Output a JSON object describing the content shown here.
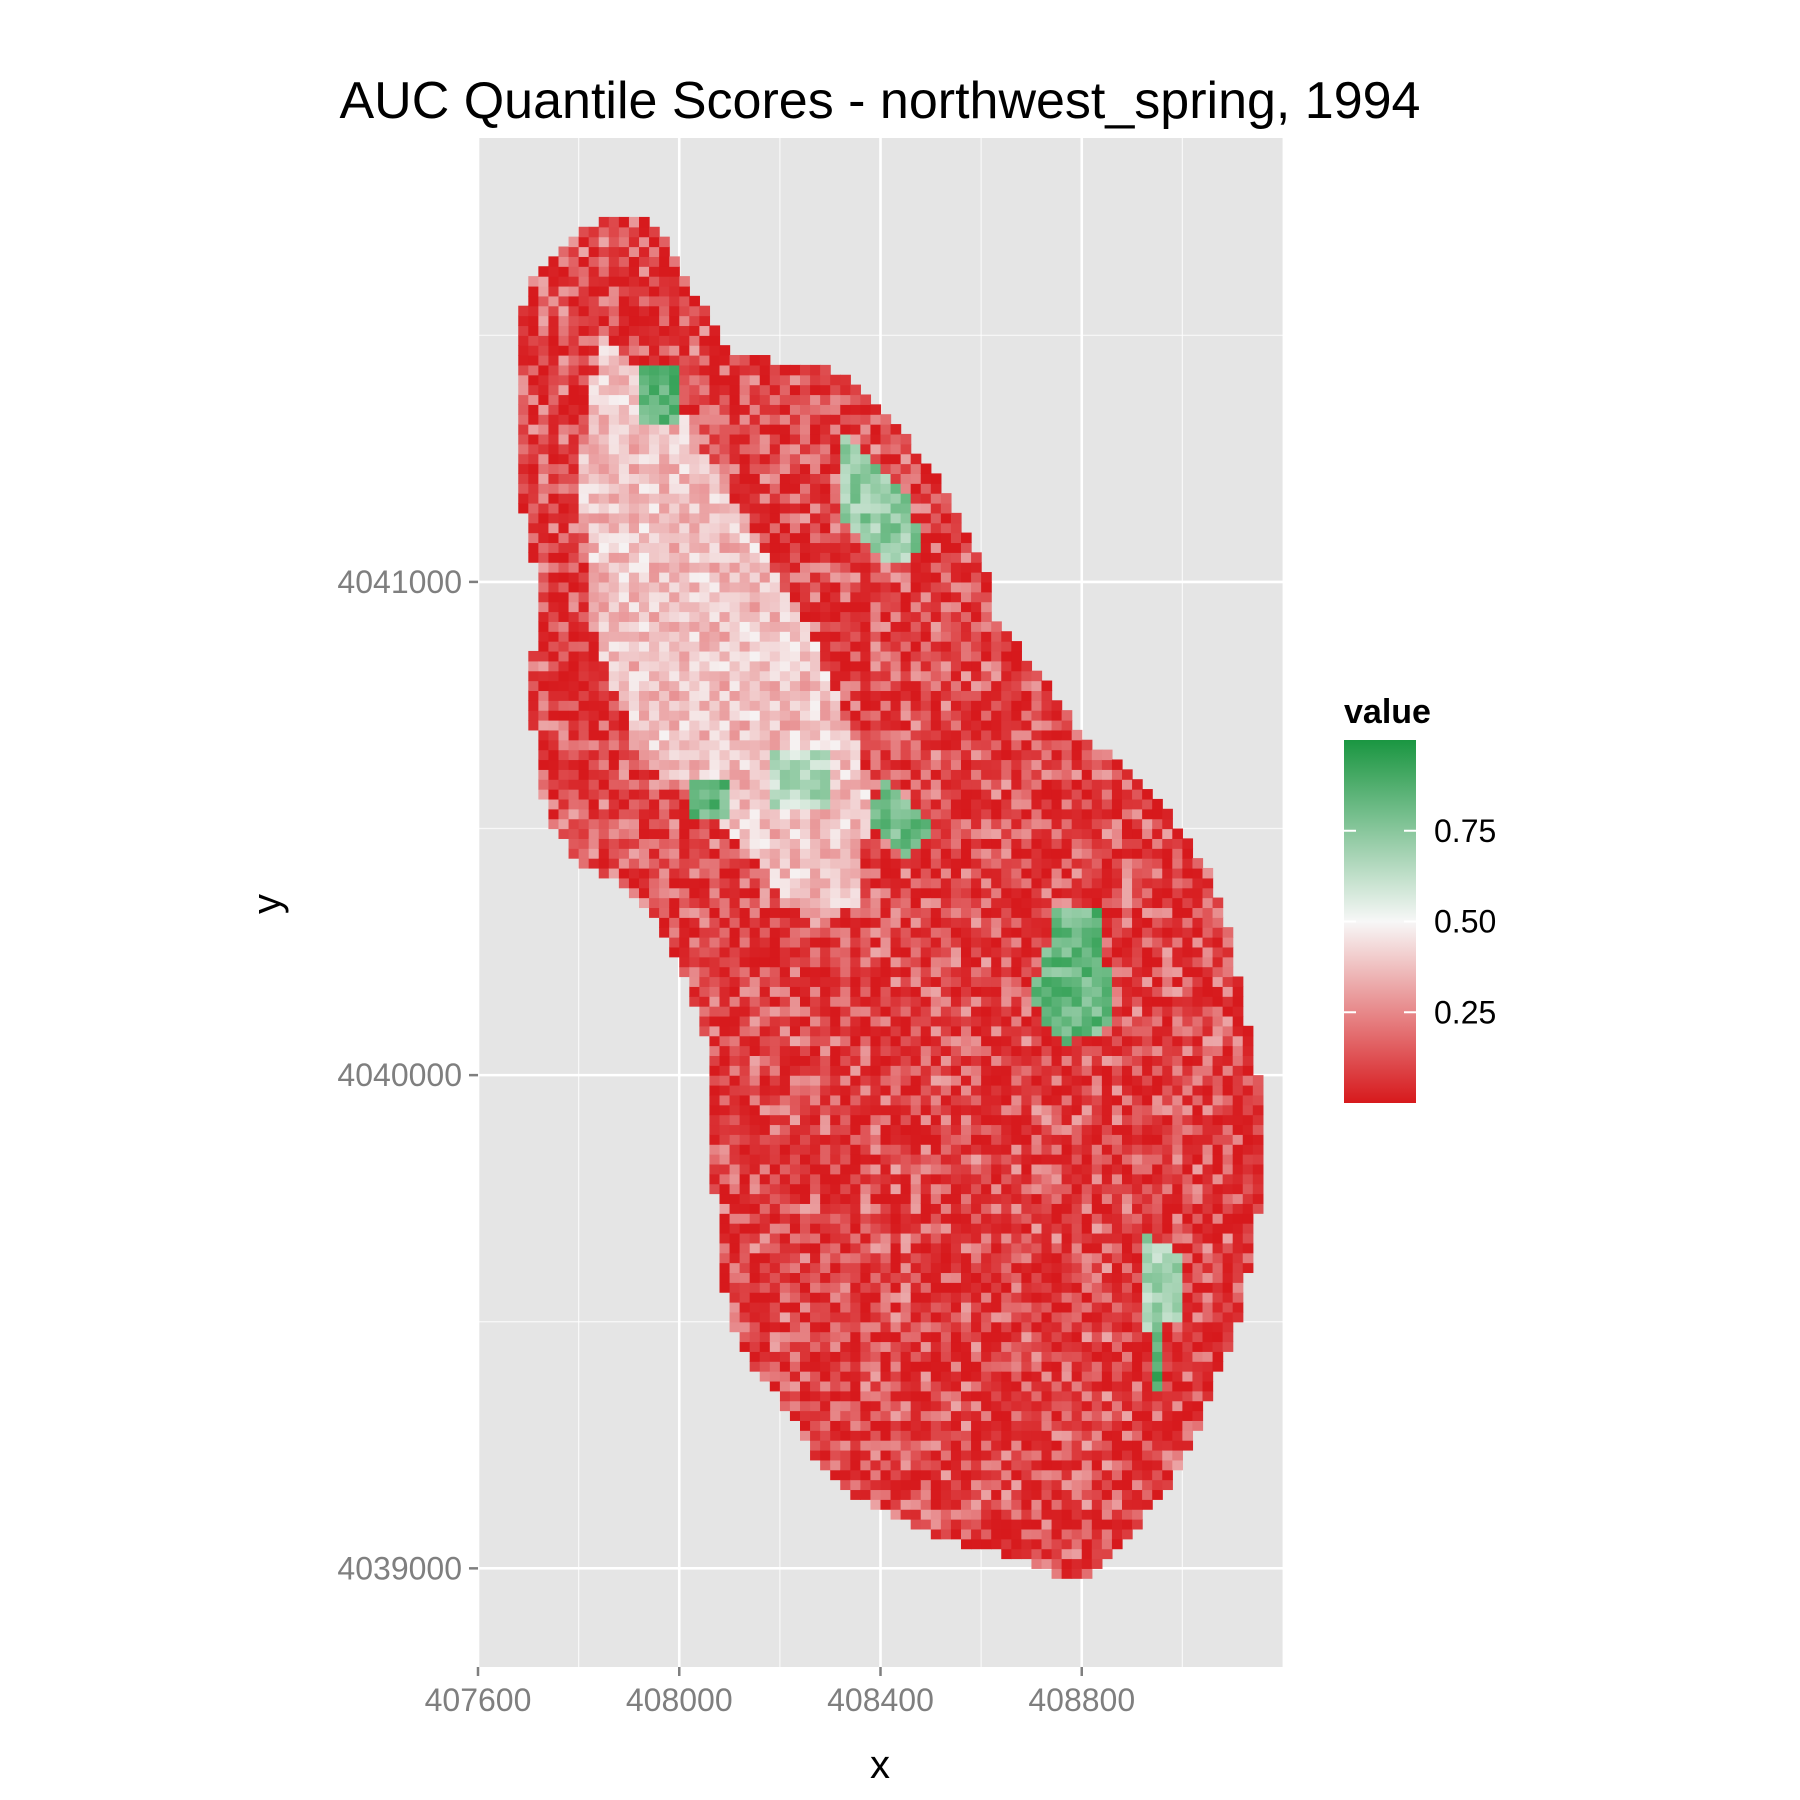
{
  "chart_data": {
    "type": "heatmap",
    "title": "AUC Quantile Scores - northwest_spring, 1994",
    "xlabel": "x",
    "ylabel": "y",
    "xlim": [
      407600,
      409200
    ],
    "ylim": [
      4038800,
      4041900
    ],
    "x_ticks": [
      407600,
      408000,
      408400,
      408800
    ],
    "x_tick_labels": [
      "407600",
      "408000",
      "408400",
      "408800"
    ],
    "y_ticks": [
      4039000,
      4040000,
      4041000
    ],
    "y_tick_labels": [
      "4039000",
      "4040000",
      "4041000"
    ],
    "grid": true,
    "cell_size": [
      20,
      20
    ],
    "legend": {
      "title": "value",
      "placement": "right",
      "breaks": [
        0.25,
        0.5,
        0.75
      ],
      "break_labels": [
        "0.25",
        "0.50",
        "0.75"
      ],
      "range": [
        0,
        1
      ]
    },
    "colors": {
      "low": "#d7191c",
      "mid": "#f7f7f7",
      "high": "#1a9641",
      "panel": "#e5e5e5",
      "grid": "#ffffff"
    },
    "extent": {
      "northwest_tip": [
        407700,
        4041600
      ],
      "north_peak": [
        407880,
        4041740
      ],
      "south_tip": [
        408800,
        4038980
      ]
    },
    "zones": [
      {
        "name": "central-pale-band",
        "value": 0.38,
        "points": [
          [
            407840,
            4041500
          ],
          [
            407980,
            4041380
          ],
          [
            408120,
            4041150
          ],
          [
            408260,
            4040900
          ],
          [
            408380,
            4040600
          ],
          [
            408360,
            4040350
          ],
          [
            408260,
            4040300
          ],
          [
            408120,
            4040480
          ],
          [
            407920,
            4040650
          ],
          [
            407830,
            4040900
          ],
          [
            407800,
            4041200
          ]
        ]
      },
      {
        "name": "green-patch-1",
        "value": 0.85,
        "points": [
          [
            407920,
            4041450
          ],
          [
            408010,
            4041450
          ],
          [
            408010,
            4041330
          ],
          [
            407920,
            4041330
          ]
        ]
      },
      {
        "name": "green-patch-2",
        "value": 0.72,
        "points": [
          [
            408330,
            4041300
          ],
          [
            408440,
            4041200
          ],
          [
            408490,
            4041060
          ],
          [
            408420,
            4041030
          ],
          [
            408310,
            4041140
          ]
        ]
      },
      {
        "name": "green-patch-3",
        "value": 0.82,
        "points": [
          [
            408020,
            4040610
          ],
          [
            408100,
            4040610
          ],
          [
            408100,
            4040530
          ],
          [
            408020,
            4040530
          ]
        ]
      },
      {
        "name": "green-patch-4",
        "value": 0.65,
        "points": [
          [
            408190,
            4040670
          ],
          [
            408300,
            4040670
          ],
          [
            408300,
            4040550
          ],
          [
            408190,
            4040550
          ]
        ]
      },
      {
        "name": "green-patch-5",
        "value": 0.8,
        "points": [
          [
            408400,
            4040600
          ],
          [
            408520,
            4040500
          ],
          [
            408440,
            4040440
          ],
          [
            408380,
            4040520
          ]
        ]
      },
      {
        "name": "green-patch-6",
        "value": 0.82,
        "points": [
          [
            408750,
            4040340
          ],
          [
            408840,
            4040340
          ],
          [
            408860,
            4040100
          ],
          [
            408760,
            4040060
          ],
          [
            408700,
            4040160
          ]
        ]
      },
      {
        "name": "green-patch-7",
        "value": 0.7,
        "points": [
          [
            408920,
            4039680
          ],
          [
            409000,
            4039640
          ],
          [
            409000,
            4039500
          ],
          [
            408930,
            4039480
          ]
        ]
      },
      {
        "name": "green-patch-8",
        "value": 0.85,
        "points": [
          [
            408930,
            4039480
          ],
          [
            408970,
            4039480
          ],
          [
            408970,
            4039360
          ],
          [
            408940,
            4039360
          ]
        ]
      }
    ]
  }
}
